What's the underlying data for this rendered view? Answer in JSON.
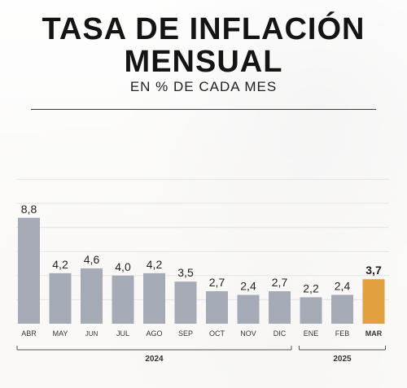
{
  "header": {
    "title_line1": "TASA DE INFLACIÓN",
    "title_line2": "MENSUAL",
    "subtitle": "EN % DE CADA MES"
  },
  "chart_data": {
    "type": "bar",
    "categories": [
      "ABR",
      "MAY",
      "JUN",
      "JUL",
      "AGO",
      "SEP",
      "OCT",
      "NOV",
      "DIC",
      "ENE",
      "FEB",
      "MAR"
    ],
    "labels": [
      "8,8",
      "4,2",
      "4,6",
      "4,0",
      "4,2",
      "3,5",
      "2,7",
      "2,4",
      "2,7",
      "2,2",
      "2,4",
      "3,7"
    ],
    "values": [
      8.8,
      4.2,
      4.6,
      4.0,
      4.2,
      3.5,
      2.7,
      2.4,
      2.7,
      2.2,
      2.4,
      3.7
    ],
    "highlight_index": 11,
    "colors": {
      "bar": "#a4abb7",
      "highlight": "#e2a13f",
      "grid": "#e4e4e4",
      "axis": "#555555"
    },
    "groups": [
      {
        "label": "2024",
        "from": 0,
        "to": 8
      },
      {
        "label": "2025",
        "from": 9,
        "to": 11
      }
    ],
    "ylim": [
      0,
      10
    ],
    "grid": true
  }
}
